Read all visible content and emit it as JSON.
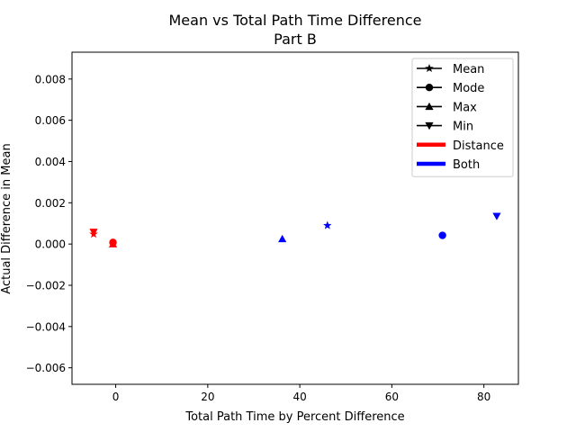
{
  "chart_data": {
    "type": "scatter",
    "title": "Mean vs Total Path Time Difference",
    "subtitle": "Part B",
    "xlabel": "Total Path Time by Percent Difference",
    "ylabel": "Actual Difference in Mean",
    "xlim": [
      -9.5,
      87.5
    ],
    "ylim": [
      -0.0068,
      0.0093
    ],
    "xticks": [
      0,
      20,
      40,
      60,
      80
    ],
    "xtick_labels": [
      "0",
      "20",
      "40",
      "60",
      "80"
    ],
    "yticks": [
      -0.006,
      -0.004,
      -0.002,
      0.0,
      0.002,
      0.004,
      0.006,
      0.008
    ],
    "ytick_labels": [
      "−0.006",
      "−0.004",
      "−0.002",
      "0.000",
      "0.002",
      "0.004",
      "0.006",
      "0.008"
    ],
    "grid": false,
    "legend_position": "top-right",
    "legend": [
      {
        "label": "Mean",
        "kind": "marker",
        "marker": "star"
      },
      {
        "label": "Mode",
        "kind": "marker",
        "marker": "circle"
      },
      {
        "label": "Max",
        "kind": "marker",
        "marker": "triangle-up"
      },
      {
        "label": "Min",
        "kind": "marker",
        "marker": "triangle-down"
      },
      {
        "label": "Distance",
        "kind": "color",
        "color": "#ff0000"
      },
      {
        "label": "Both",
        "kind": "color",
        "color": "#0000ff"
      }
    ],
    "points": [
      {
        "group": "Distance",
        "stat": "Mean",
        "marker": "star",
        "color": "#ff0000",
        "x": -4.8,
        "y": 0.00048
      },
      {
        "group": "Distance",
        "stat": "Min",
        "marker": "triangle-down",
        "color": "#ff0000",
        "x": -4.8,
        "y": 0.00058
      },
      {
        "group": "Distance",
        "stat": "Mode",
        "marker": "circle",
        "color": "#ff0000",
        "x": -0.6,
        "y": 8e-05
      },
      {
        "group": "Distance",
        "stat": "Max",
        "marker": "triangle-up",
        "color": "#ff0000",
        "x": -0.6,
        "y": 0.0
      },
      {
        "group": "Both",
        "stat": "Max",
        "marker": "triangle-up",
        "color": "#0000ff",
        "x": 36.2,
        "y": 0.00025
      },
      {
        "group": "Both",
        "stat": "Mean",
        "marker": "star",
        "color": "#0000ff",
        "x": 46.0,
        "y": 0.0009
      },
      {
        "group": "Both",
        "stat": "Mode",
        "marker": "circle",
        "color": "#0000ff",
        "x": 71.0,
        "y": 0.00042
      },
      {
        "group": "Both",
        "stat": "Min",
        "marker": "triangle-down",
        "color": "#0000ff",
        "x": 82.8,
        "y": 0.00135
      }
    ]
  }
}
